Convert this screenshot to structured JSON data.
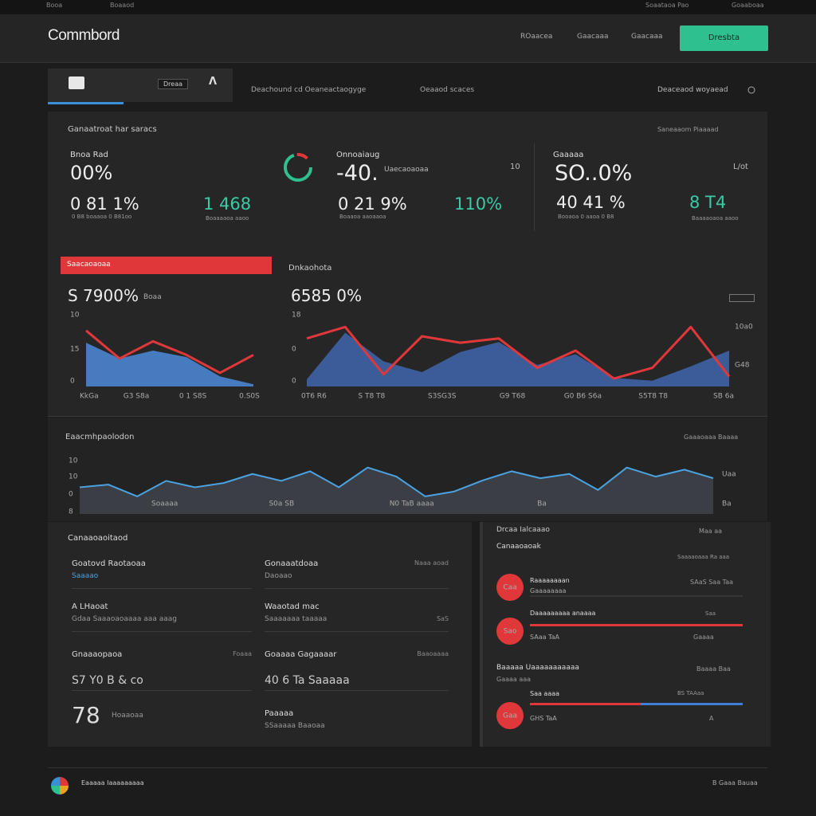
{
  "top_bar": {
    "left": [
      "Booa",
      "Boaaod"
    ],
    "right": [
      "Soaataoa Pao",
      "Goaaboaa"
    ]
  },
  "header": {
    "logo": "Commbord",
    "nav": [
      "ROaacea",
      "Gaacaaa",
      "Gaacaaa"
    ],
    "button": "Dresbta"
  },
  "tabs": {
    "badge": "Dreaa",
    "items": [
      "Deachound cd Oeaneactaogyge",
      "Oeaaod scaces"
    ],
    "right": "Deaceaod woyaead"
  },
  "overview": {
    "title": "Ganaatroat har saracs",
    "link": "Saneaaom Piaaaad",
    "kpis": [
      {
        "label": "Bnoa Rad",
        "value": "00%",
        "sub_value": "0 81 1%",
        "sub_caption": "0 B8 boaaoa 0 B81oo",
        "accent_value": "1 468",
        "accent_caption": "Boaaaaoa aaoo"
      },
      {
        "label": "Onnoaiaug",
        "value": "-40.",
        "note": "Uaecaoaoaa",
        "corner": "10",
        "sub_value": "0 21 9%",
        "sub_caption": "Boaaoa aaoaaoa",
        "accent_value": "110%"
      },
      {
        "label": "Gaaaaa",
        "value": "SO..0%",
        "corner": "L/ot",
        "sub_value": "40 41 %",
        "sub_caption": "Booaoa 0 aaoa 0 B8",
        "accent_value": "8 T4",
        "accent_caption": "Baaaaoaoa aaoo"
      }
    ]
  },
  "charts": {
    "left": {
      "banner": "Saacaoaoaa",
      "headline": "S 7900%",
      "note": "Boaa",
      "y_labels": [
        "10",
        "15",
        "0"
      ],
      "x_labels": [
        "KkGa",
        "G3 S8a",
        "0 1 S8S",
        "0.S0S"
      ],
      "ylim": [
        0,
        100
      ],
      "line": {
        "color": "#e0383a",
        "values": [
          78,
          39,
          63,
          44,
          19,
          44
        ]
      },
      "area": {
        "color": "#4a86d0",
        "values": [
          61,
          39,
          50,
          41,
          14,
          3
        ]
      }
    },
    "right": {
      "title": "Dnkaohota",
      "headline": "6585 0%",
      "y_labels": [
        "18",
        "0",
        "0"
      ],
      "y2_labels": [
        "10a0",
        "G48"
      ],
      "x_labels": [
        "0T6 R6",
        "S T8 T8",
        "S3SG3S",
        "G9 T68",
        "G0 B6 S6a",
        "S5T8 T8",
        "SB 6a"
      ],
      "ylim": [
        0,
        100
      ],
      "line": {
        "color": "#e0383a",
        "values": [
          67,
          83,
          17,
          70,
          61,
          67,
          26,
          50,
          11,
          26,
          83,
          14
        ]
      },
      "area": {
        "color": "#3f63a6",
        "values": [
          10,
          75,
          35,
          20,
          48,
          62,
          30,
          45,
          12,
          8,
          28,
          50
        ]
      }
    },
    "trend": {
      "title": "Eaacmhpaolodon",
      "link": "Gaaaoaaa Baaaa",
      "y_labels": [
        "10",
        "10",
        "0",
        "8"
      ],
      "y2_labels": [
        "Uaa",
        "Ba"
      ],
      "x_labels": [
        "Soaaaa",
        "S0a SB",
        "N0 TaB aaaa",
        "Ba"
      ],
      "ylim": [
        0,
        100
      ],
      "line": {
        "color": "#4aa3e0",
        "values": [
          50,
          55,
          33,
          62,
          50,
          58,
          75,
          62,
          80,
          50,
          87,
          70,
          33,
          42,
          63,
          80,
          67,
          75,
          45,
          87,
          70,
          83,
          67
        ]
      },
      "area": {
        "color": "#3b3e44"
      }
    }
  },
  "details": {
    "title": "Canaaoaoitaod",
    "fields": [
      {
        "label": "Goatovd Raotaoaa",
        "value": "Saaaao"
      },
      {
        "label": "Gonaaatdoaa",
        "value": "Daoaao",
        "note": "Naaa aoad"
      },
      {
        "label": "A LHaoat",
        "value": "Gdaa Saaaoaoaaaa aaa aaag"
      },
      {
        "label": "Waaotad mac",
        "value": "Saaaaaaa taaaaa",
        "note": "SaS"
      },
      {
        "label": "Gnaaaopaoa",
        "value": "S7 Y0 B & co",
        "note": "Foaaa"
      },
      {
        "label": "Goaaaa Gagaaaar",
        "value": "40 6 Ta Saaaaa",
        "note": "Baaoaaaa"
      },
      {
        "label": "78",
        "value": "Hoaaoaa"
      },
      {
        "label": "Paaaaa",
        "value": "SSaaaaa Baaoaa"
      }
    ]
  },
  "activity": {
    "title": "Drcaa Ialcaaao",
    "link": "Maa aa",
    "subtitle": "Canaaoaoak",
    "caption": "Saaaaoaaa Ra aaa",
    "group2": {
      "title": "Baaaaa Uaaaaaaaaaaa",
      "sub": "Gaaaa aaa",
      "link": "Baaaa Baa"
    },
    "items": [
      {
        "icon": "Caa",
        "title": "Raaaaaaaan",
        "sub": "Gaaaaaaaa",
        "note": "SAaS Saa Taa"
      },
      {
        "icon": "Sao",
        "title": "Daaaaaaaaa anaaaa",
        "sub": "SAaa TaA",
        "note": "Gaaaa",
        "note2": "Saa",
        "segments": [
          {
            "color": "#e0383a",
            "value": 100
          }
        ]
      },
      {
        "icon": "Gaa",
        "title": "Saa aaaa",
        "sub": "GHS TaA",
        "note": "A",
        "note2": "BS TAAaa",
        "segments": [
          {
            "color": "#e0383a",
            "value": 52
          },
          {
            "color": "#3f7fd6",
            "value": 48
          }
        ]
      }
    ]
  },
  "footer": {
    "text": "Eaaaaa Iaaaaaaaaa",
    "right": "B Gaaa Bauaa"
  }
}
